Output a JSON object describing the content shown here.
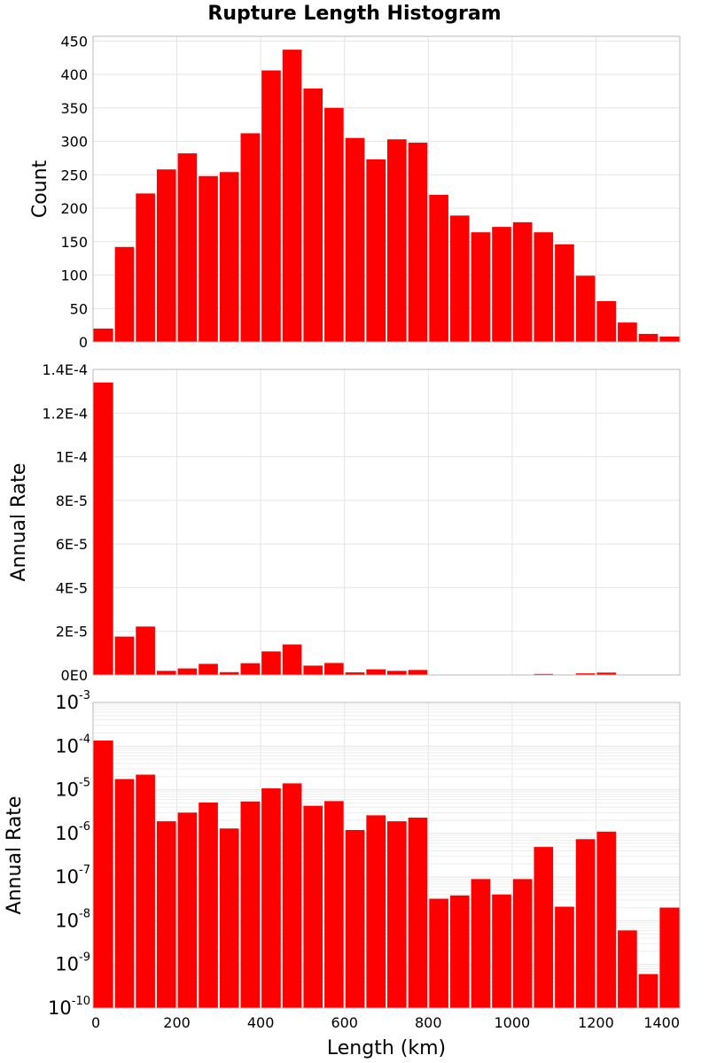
{
  "chart_data": {
    "title": "Rupture Length Histogram",
    "type": "bar",
    "bin_width": 50,
    "color": "#ff0000",
    "xlabel": "Length (km)",
    "xlim": [
      0,
      1400
    ],
    "xticks": [
      0,
      200,
      400,
      600,
      800,
      1000,
      1200,
      1400
    ],
    "x": [
      0,
      50,
      100,
      150,
      200,
      250,
      300,
      350,
      400,
      450,
      500,
      550,
      600,
      650,
      700,
      750,
      800,
      850,
      900,
      950,
      1000,
      1050,
      1100,
      1150,
      1200,
      1250,
      1300,
      1350
    ],
    "panels": [
      {
        "ylabel": "Count",
        "scale": "linear",
        "ylim": [
          0,
          457
        ],
        "yticks": [
          0,
          50,
          100,
          150,
          200,
          250,
          300,
          350,
          400,
          450
        ],
        "ytick_labels": [
          "0",
          "50",
          "100",
          "150",
          "200",
          "250",
          "300",
          "350",
          "400",
          "450"
        ],
        "values": [
          20,
          142,
          222,
          258,
          282,
          248,
          254,
          312,
          406,
          437,
          379,
          350,
          305,
          273,
          303,
          298,
          220,
          189,
          164,
          172,
          179,
          164,
          146,
          99,
          61,
          29,
          12,
          8
        ]
      },
      {
        "ylabel": "Annual Rate",
        "scale": "linear",
        "ylim": [
          0,
          0.00014
        ],
        "yticks": [
          0,
          2e-05,
          4e-05,
          6e-05,
          8e-05,
          0.0001,
          0.00012,
          0.00014
        ],
        "ytick_labels": [
          "0E0",
          "2E-5",
          "4E-5",
          "6E-5",
          "8E-5",
          "1E-4",
          "1.2E-4",
          "1.4E-4"
        ],
        "values": [
          0.000134,
          1.76e-05,
          2.22e-05,
          1.9e-06,
          3e-06,
          5.1e-06,
          1.3e-06,
          5.4e-06,
          1.08e-05,
          1.4e-05,
          4.3e-06,
          5.5e-06,
          1.2e-06,
          2.6e-06,
          1.9e-06,
          2.3e-06,
          3.2e-08,
          3.8e-08,
          9e-08,
          4e-08,
          9e-08,
          4.9e-07,
          2.1e-08,
          7.4e-07,
          1.1e-06,
          6e-09,
          6e-10,
          2e-08
        ]
      },
      {
        "ylabel": "Annual Rate",
        "scale": "log",
        "ylim": [
          1e-10,
          0.001
        ],
        "ytick_exponents": [
          -3,
          -4,
          -5,
          -6,
          -7,
          -8,
          -9,
          -10
        ],
        "ytick_base": "10",
        "values": [
          0.000134,
          1.76e-05,
          2.22e-05,
          1.9e-06,
          3e-06,
          5.1e-06,
          1.3e-06,
          5.4e-06,
          1.08e-05,
          1.4e-05,
          4.3e-06,
          5.5e-06,
          1.2e-06,
          2.6e-06,
          1.9e-06,
          2.3e-06,
          3.2e-08,
          3.8e-08,
          9e-08,
          4e-08,
          9e-08,
          4.9e-07,
          2.1e-08,
          7.4e-07,
          1.1e-06,
          6e-09,
          6e-10,
          2e-08
        ]
      }
    ]
  }
}
